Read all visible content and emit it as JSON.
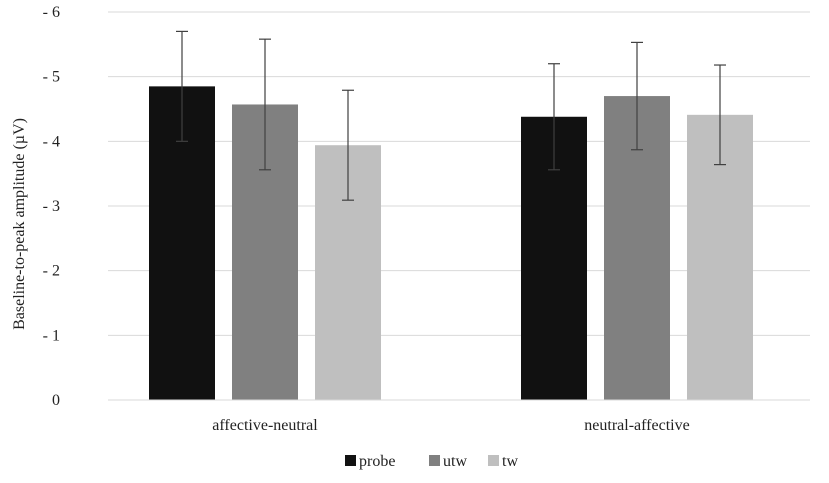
{
  "chart_data": {
    "type": "bar",
    "title": "",
    "xlabel": "",
    "ylabel": "Baseline-to-peak amplitude (µV)",
    "categories": [
      "affective-neutral",
      "neutral-affective"
    ],
    "series": [
      {
        "name": "probe",
        "color": "#111111",
        "values": [
          -4.85,
          -4.38
        ],
        "error": [
          0.85,
          0.82
        ]
      },
      {
        "name": "utw",
        "color": "#808080",
        "values": [
          -4.57,
          -4.7
        ],
        "error": [
          1.01,
          0.83
        ]
      },
      {
        "name": "tw",
        "color": "#bfbfbf",
        "values": [
          -3.94,
          -4.41
        ],
        "error": [
          0.85,
          0.77
        ]
      }
    ],
    "ylim": [
      0,
      -6
    ],
    "yticks": [
      0,
      -1,
      -2,
      -3,
      -4,
      -5,
      -6
    ],
    "ytick_labels": [
      "0",
      "- 1",
      "- 2",
      "- 3",
      "- 4",
      "- 5",
      "- 6"
    ],
    "grid": true,
    "legend": "bottom-center",
    "gridline_color": "#d9d9d9",
    "errorbar_color": "#404040"
  }
}
